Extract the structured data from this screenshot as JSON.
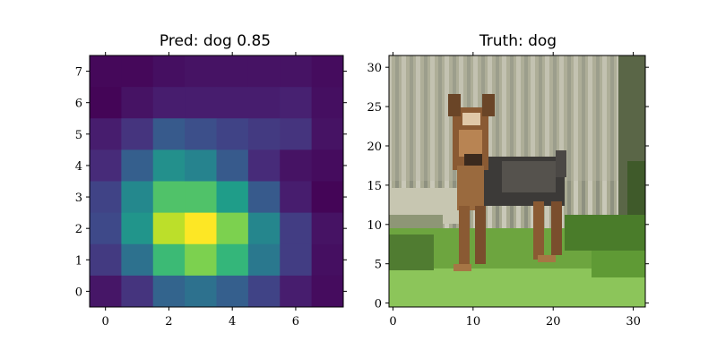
{
  "chart_data": [
    {
      "type": "heatmap",
      "title": "Pred: dog 0.85",
      "colormap": "viridis",
      "vmin": 0.0,
      "vmax": 1.0,
      "xticks": [
        0,
        2,
        4,
        6
      ],
      "yticks": [
        0,
        1,
        2,
        3,
        4,
        5,
        6,
        7
      ],
      "xlim": [
        -0.5,
        7.5
      ],
      "ylim": [
        7.5,
        -0.5
      ],
      "values": [
        [
          0.02,
          0.02,
          0.04,
          0.05,
          0.05,
          0.05,
          0.05,
          0.03
        ],
        [
          0.01,
          0.05,
          0.08,
          0.08,
          0.08,
          0.08,
          0.09,
          0.04
        ],
        [
          0.08,
          0.15,
          0.28,
          0.24,
          0.2,
          0.17,
          0.15,
          0.05
        ],
        [
          0.12,
          0.3,
          0.5,
          0.45,
          0.28,
          0.12,
          0.05,
          0.03
        ],
        [
          0.2,
          0.47,
          0.72,
          0.72,
          0.55,
          0.28,
          0.08,
          0.01
        ],
        [
          0.22,
          0.52,
          0.9,
          1.0,
          0.8,
          0.46,
          0.18,
          0.05
        ],
        [
          0.17,
          0.37,
          0.68,
          0.8,
          0.66,
          0.4,
          0.18,
          0.04
        ],
        [
          0.06,
          0.15,
          0.32,
          0.37,
          0.3,
          0.2,
          0.08,
          0.03
        ]
      ]
    },
    {
      "type": "image",
      "title": "Truth: dog",
      "xticks": [
        0,
        10,
        20,
        30
      ],
      "yticks": [
        0,
        5,
        10,
        15,
        20,
        25,
        30
      ],
      "xlim": [
        -0.5,
        31.5
      ],
      "ylim": [
        31.5,
        -0.5
      ]
    }
  ]
}
